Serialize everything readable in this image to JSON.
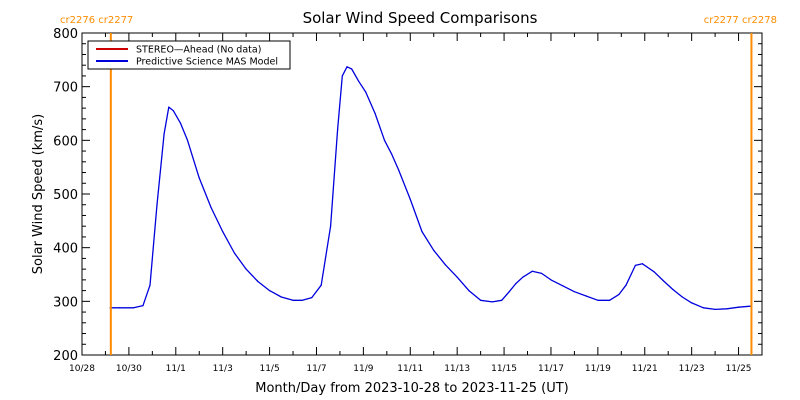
{
  "chart_data": {
    "type": "line",
    "title": "Solar Wind Speed Comparisons",
    "xlabel": "Month/Day from 2023-10-28 to 2023-11-25 (UT)",
    "ylabel": "Solar Wind Speed (km/s)",
    "xlim": [
      0,
      29
    ],
    "ylim": [
      200,
      800
    ],
    "yticks": [
      200,
      300,
      400,
      500,
      600,
      700,
      800
    ],
    "xticks": [
      {
        "day": 0,
        "label": "10/28"
      },
      {
        "day": 2,
        "label": "10/30"
      },
      {
        "day": 4,
        "label": "11/1"
      },
      {
        "day": 6,
        "label": "11/3"
      },
      {
        "day": 8,
        "label": "11/5"
      },
      {
        "day": 10,
        "label": "11/7"
      },
      {
        "day": 12,
        "label": "11/9"
      },
      {
        "day": 14,
        "label": "11/11"
      },
      {
        "day": 16,
        "label": "11/13"
      },
      {
        "day": 18,
        "label": "11/15"
      },
      {
        "day": 20,
        "label": "11/17"
      },
      {
        "day": 22,
        "label": "11/19"
      },
      {
        "day": 24,
        "label": "11/21"
      },
      {
        "day": 26,
        "label": "11/23"
      },
      {
        "day": 28,
        "label": "11/25"
      }
    ],
    "legend": {
      "position": "top-left",
      "entries": [
        {
          "label": "STEREO—Ahead (No data)",
          "color": "#cc0000"
        },
        {
          "label": "Predictive Science MAS Model",
          "color": "#0000dd"
        }
      ]
    },
    "rotation_markers": [
      {
        "day": 1.23,
        "label": "cr2276 cr2277",
        "color": "#ff8c00",
        "align": "left"
      },
      {
        "day": 28.55,
        "label": "cr2277 cr2278",
        "color": "#ff8c00",
        "align": "right"
      }
    ],
    "series": [
      {
        "name": "Predictive Science MAS Model",
        "color": "#0000dd",
        "x": [
          1.2,
          1.6,
          2.2,
          2.6,
          2.9,
          3.2,
          3.5,
          3.7,
          3.9,
          4.2,
          4.5,
          5.0,
          5.5,
          6.0,
          6.5,
          7.0,
          7.5,
          8.0,
          8.5,
          9.0,
          9.4,
          9.8,
          10.2,
          10.6,
          10.9,
          11.1,
          11.3,
          11.5,
          11.8,
          12.1,
          12.5,
          12.9,
          13.2,
          13.5,
          14.0,
          14.5,
          15.0,
          15.5,
          16.0,
          16.5,
          17.0,
          17.5,
          17.9,
          18.2,
          18.5,
          18.8,
          19.2,
          19.6,
          20.0,
          20.5,
          21.0,
          21.5,
          22.0,
          22.5,
          22.9,
          23.2,
          23.6,
          23.9,
          24.1,
          24.4,
          24.8,
          25.2,
          25.6,
          26.0,
          26.5,
          27.0,
          27.5,
          28.0,
          28.5
        ],
        "values": [
          288,
          288,
          288,
          292,
          330,
          480,
          612,
          662,
          655,
          632,
          600,
          530,
          475,
          430,
          390,
          360,
          337,
          320,
          308,
          302,
          302,
          307,
          330,
          440,
          620,
          720,
          737,
          733,
          710,
          690,
          650,
          600,
          575,
          545,
          490,
          430,
          395,
          368,
          345,
          320,
          302,
          299,
          302,
          317,
          333,
          345,
          356,
          352,
          340,
          329,
          318,
          310,
          302,
          302,
          313,
          330,
          367,
          370,
          364,
          355,
          338,
          322,
          308,
          297,
          288,
          285,
          286,
          289,
          291
        ]
      }
    ]
  }
}
